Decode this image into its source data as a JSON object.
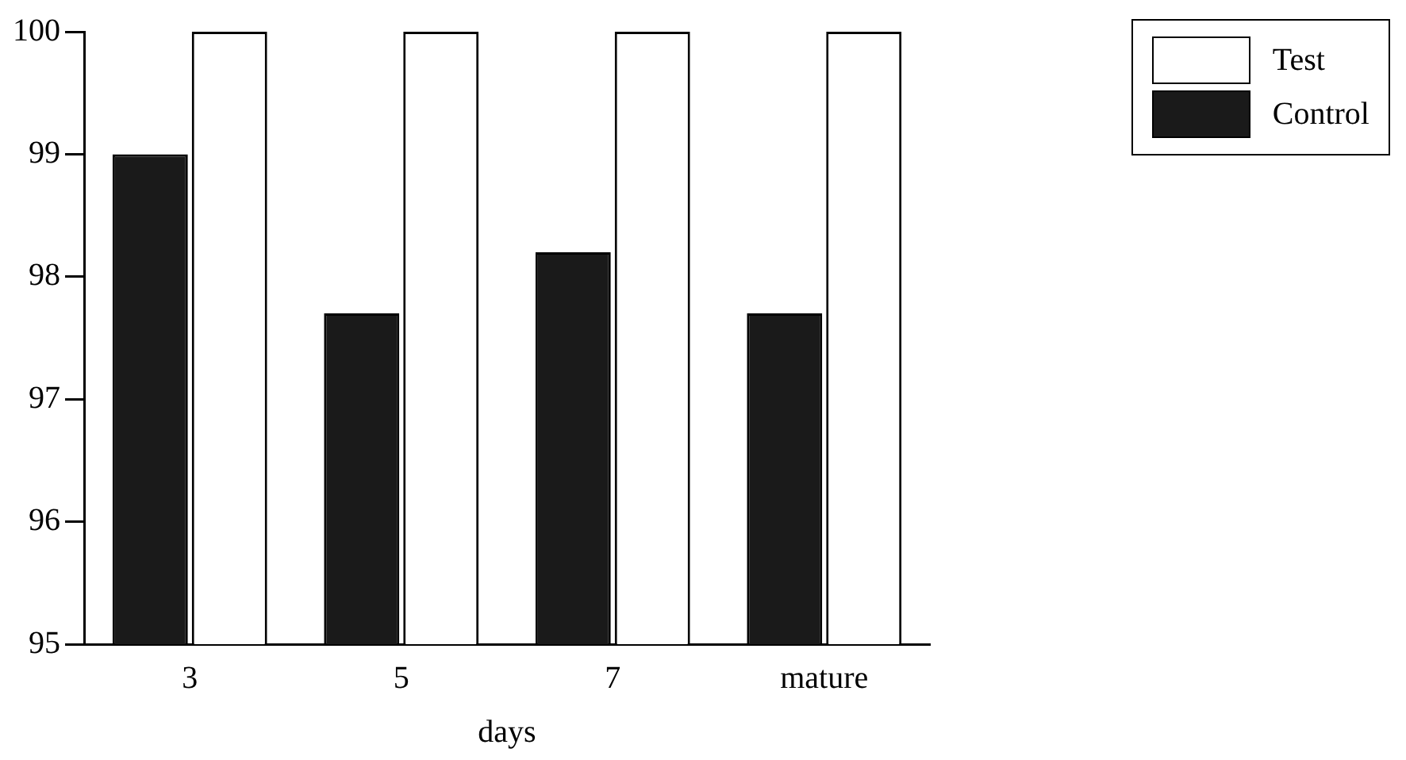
{
  "chart_data": {
    "type": "bar",
    "xlabel": "days",
    "categories": [
      "3",
      "5",
      "7",
      "mature"
    ],
    "series": [
      {
        "name": "Control",
        "color": "#1a1a1a",
        "values": [
          99.0,
          97.7,
          98.2,
          97.7
        ]
      },
      {
        "name": "Test",
        "color": "#ffffff",
        "values": [
          100,
          100,
          100,
          100
        ]
      }
    ],
    "ylim": [
      95,
      100
    ],
    "yticks": [
      95,
      96,
      97,
      98,
      99,
      100
    ],
    "grid": false,
    "legend": "top right"
  }
}
